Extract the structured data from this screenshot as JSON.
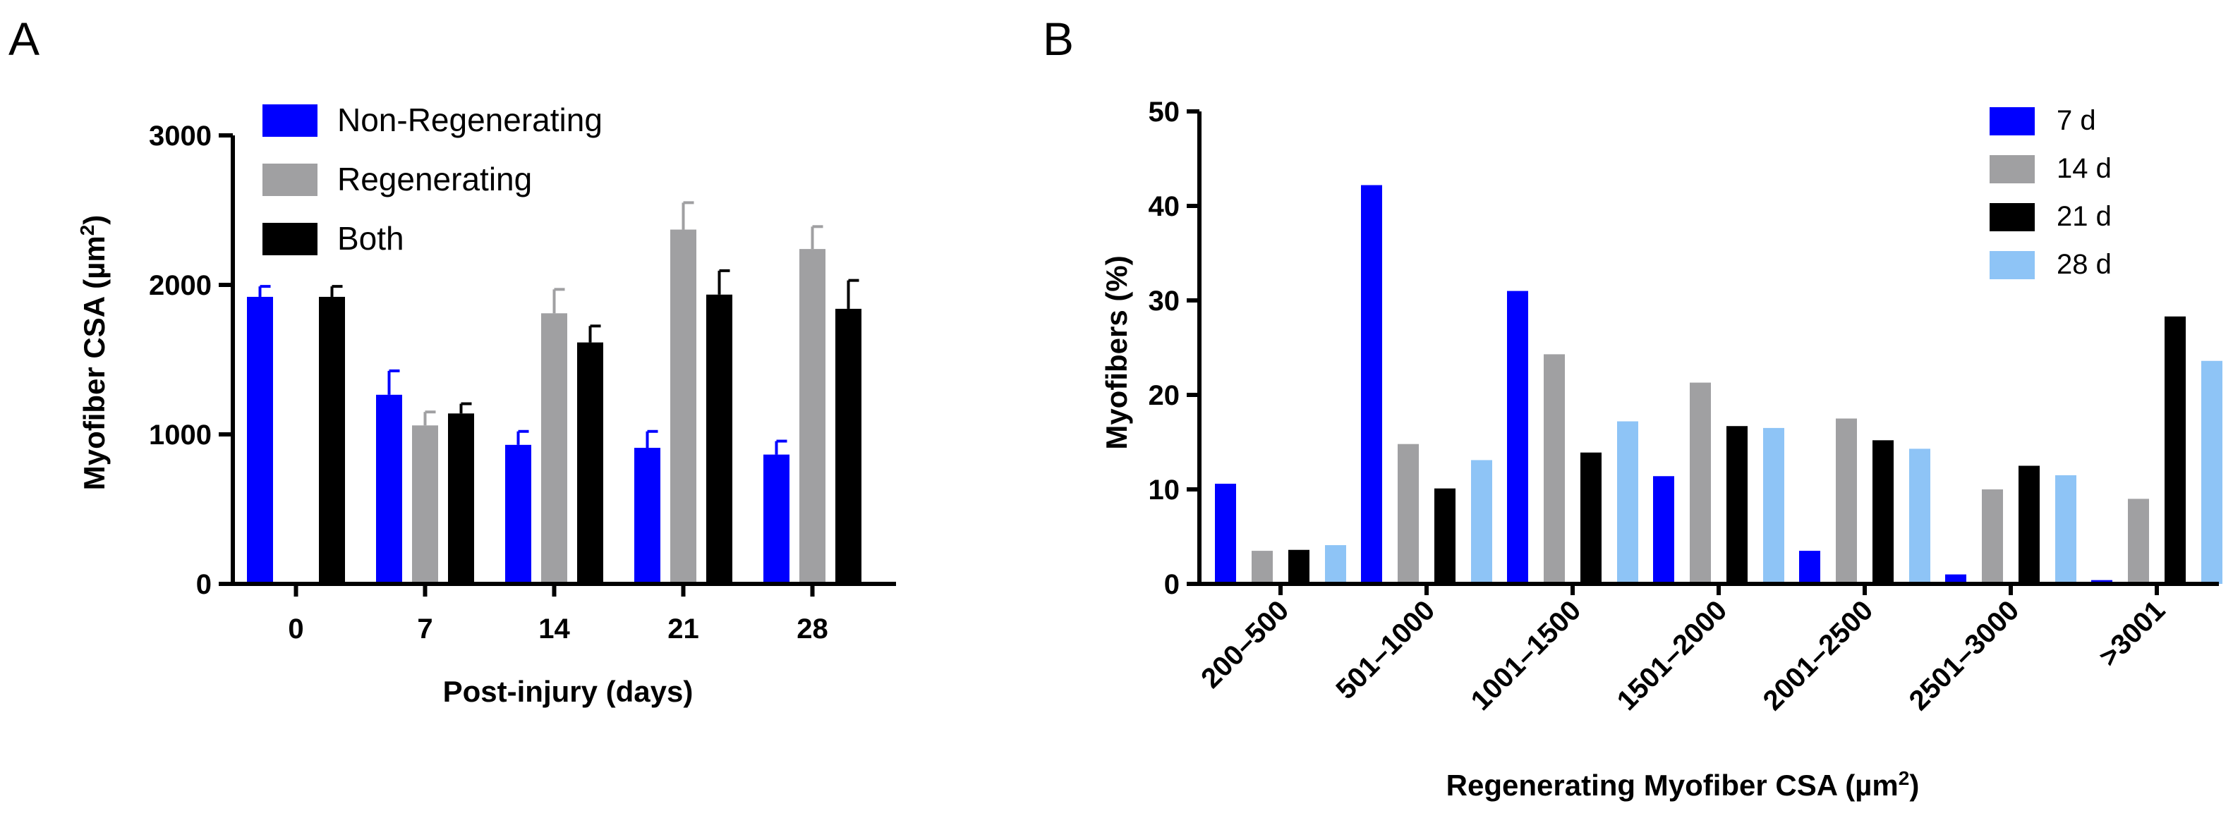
{
  "panels": {
    "a": "A",
    "b": "B"
  },
  "chart_data": [
    {
      "type": "bar",
      "panel": "A",
      "categories": [
        "0",
        "7",
        "14",
        "21",
        "28"
      ],
      "xlabel": "Post-injury (days)",
      "ylabel": "Myofiber CSA (µm²)",
      "ylabel_main": "Myofiber CSA (µm",
      "ylabel_sup": "2",
      "ylabel_close": ")",
      "ylim": [
        0,
        3000
      ],
      "yticks": [
        0,
        1000,
        2000,
        3000
      ],
      "legend_position": "top-left",
      "colors": [
        "#0000ff",
        "#a0a0a2",
        "#000000"
      ],
      "series": [
        {
          "name": "Non-Regenerating",
          "values": [
            1920,
            1265,
            930,
            910,
            865
          ],
          "errors": [
            70,
            160,
            90,
            110,
            90
          ]
        },
        {
          "name": "Regenerating",
          "values": [
            null,
            1060,
            1810,
            2370,
            2240
          ],
          "errors": [
            null,
            90,
            160,
            180,
            150
          ]
        },
        {
          "name": "Both",
          "values": [
            1920,
            1140,
            1615,
            1935,
            1840
          ],
          "errors": [
            70,
            65,
            110,
            160,
            190
          ]
        }
      ]
    },
    {
      "type": "bar",
      "panel": "B",
      "categories": [
        "200–500",
        "501–1000",
        "1001–1500",
        "1501–2000",
        "2001–2500",
        "2501–3000",
        ">3001"
      ],
      "xlabel": "Regenerating Myofiber CSA (µm²)",
      "xlabel_main": "Regenerating Myofiber CSA  (µm",
      "xlabel_sup": "2",
      "xlabel_close": ")",
      "ylabel": "Myofibers (%)",
      "ylim": [
        0,
        50
      ],
      "yticks": [
        0,
        10,
        20,
        30,
        40,
        50
      ],
      "legend_position": "top-right",
      "colors": [
        "#0000ff",
        "#a0a0a2",
        "#000000",
        "#8ec4f6"
      ],
      "series": [
        {
          "name": "7 d",
          "values": [
            10.6,
            42.2,
            31.0,
            11.4,
            3.5,
            1.0,
            0.4
          ]
        },
        {
          "name": "14 d",
          "values": [
            3.5,
            14.8,
            24.3,
            21.3,
            17.5,
            10.0,
            9.0
          ]
        },
        {
          "name": "21 d",
          "values": [
            3.6,
            10.1,
            13.9,
            16.7,
            15.2,
            12.5,
            28.3
          ]
        },
        {
          "name": "28 d",
          "values": [
            4.1,
            13.1,
            17.2,
            16.5,
            14.3,
            11.5,
            23.6
          ]
        }
      ]
    }
  ]
}
